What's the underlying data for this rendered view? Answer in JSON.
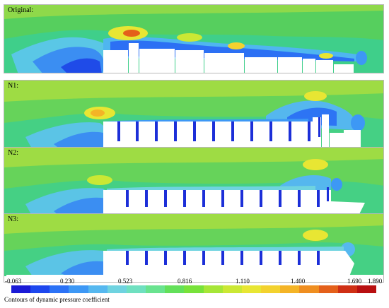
{
  "panels": [
    {
      "label": "Original:"
    },
    {
      "label": "N1:"
    },
    {
      "label": "N2:"
    },
    {
      "label": "N3:"
    }
  ],
  "scale": {
    "ticks": [
      "-0.063",
      "0.230",
      "0.523",
      "0.816",
      "1.110",
      "1.400",
      "1.690",
      "1.890"
    ],
    "colors": [
      "#1a1ad6",
      "#1d47ee",
      "#2b72f6",
      "#3d98f5",
      "#56b8ef",
      "#6fd3e0",
      "#6fe0c0",
      "#69e38f",
      "#63e05a",
      "#78e23a",
      "#a6e637",
      "#cbe834",
      "#e8e633",
      "#f3d22e",
      "#f4b426",
      "#ef8e20",
      "#e4601a",
      "#cf2f14",
      "#b80f10"
    ],
    "caption": "Contours of dynamic pressure coefficient"
  }
}
